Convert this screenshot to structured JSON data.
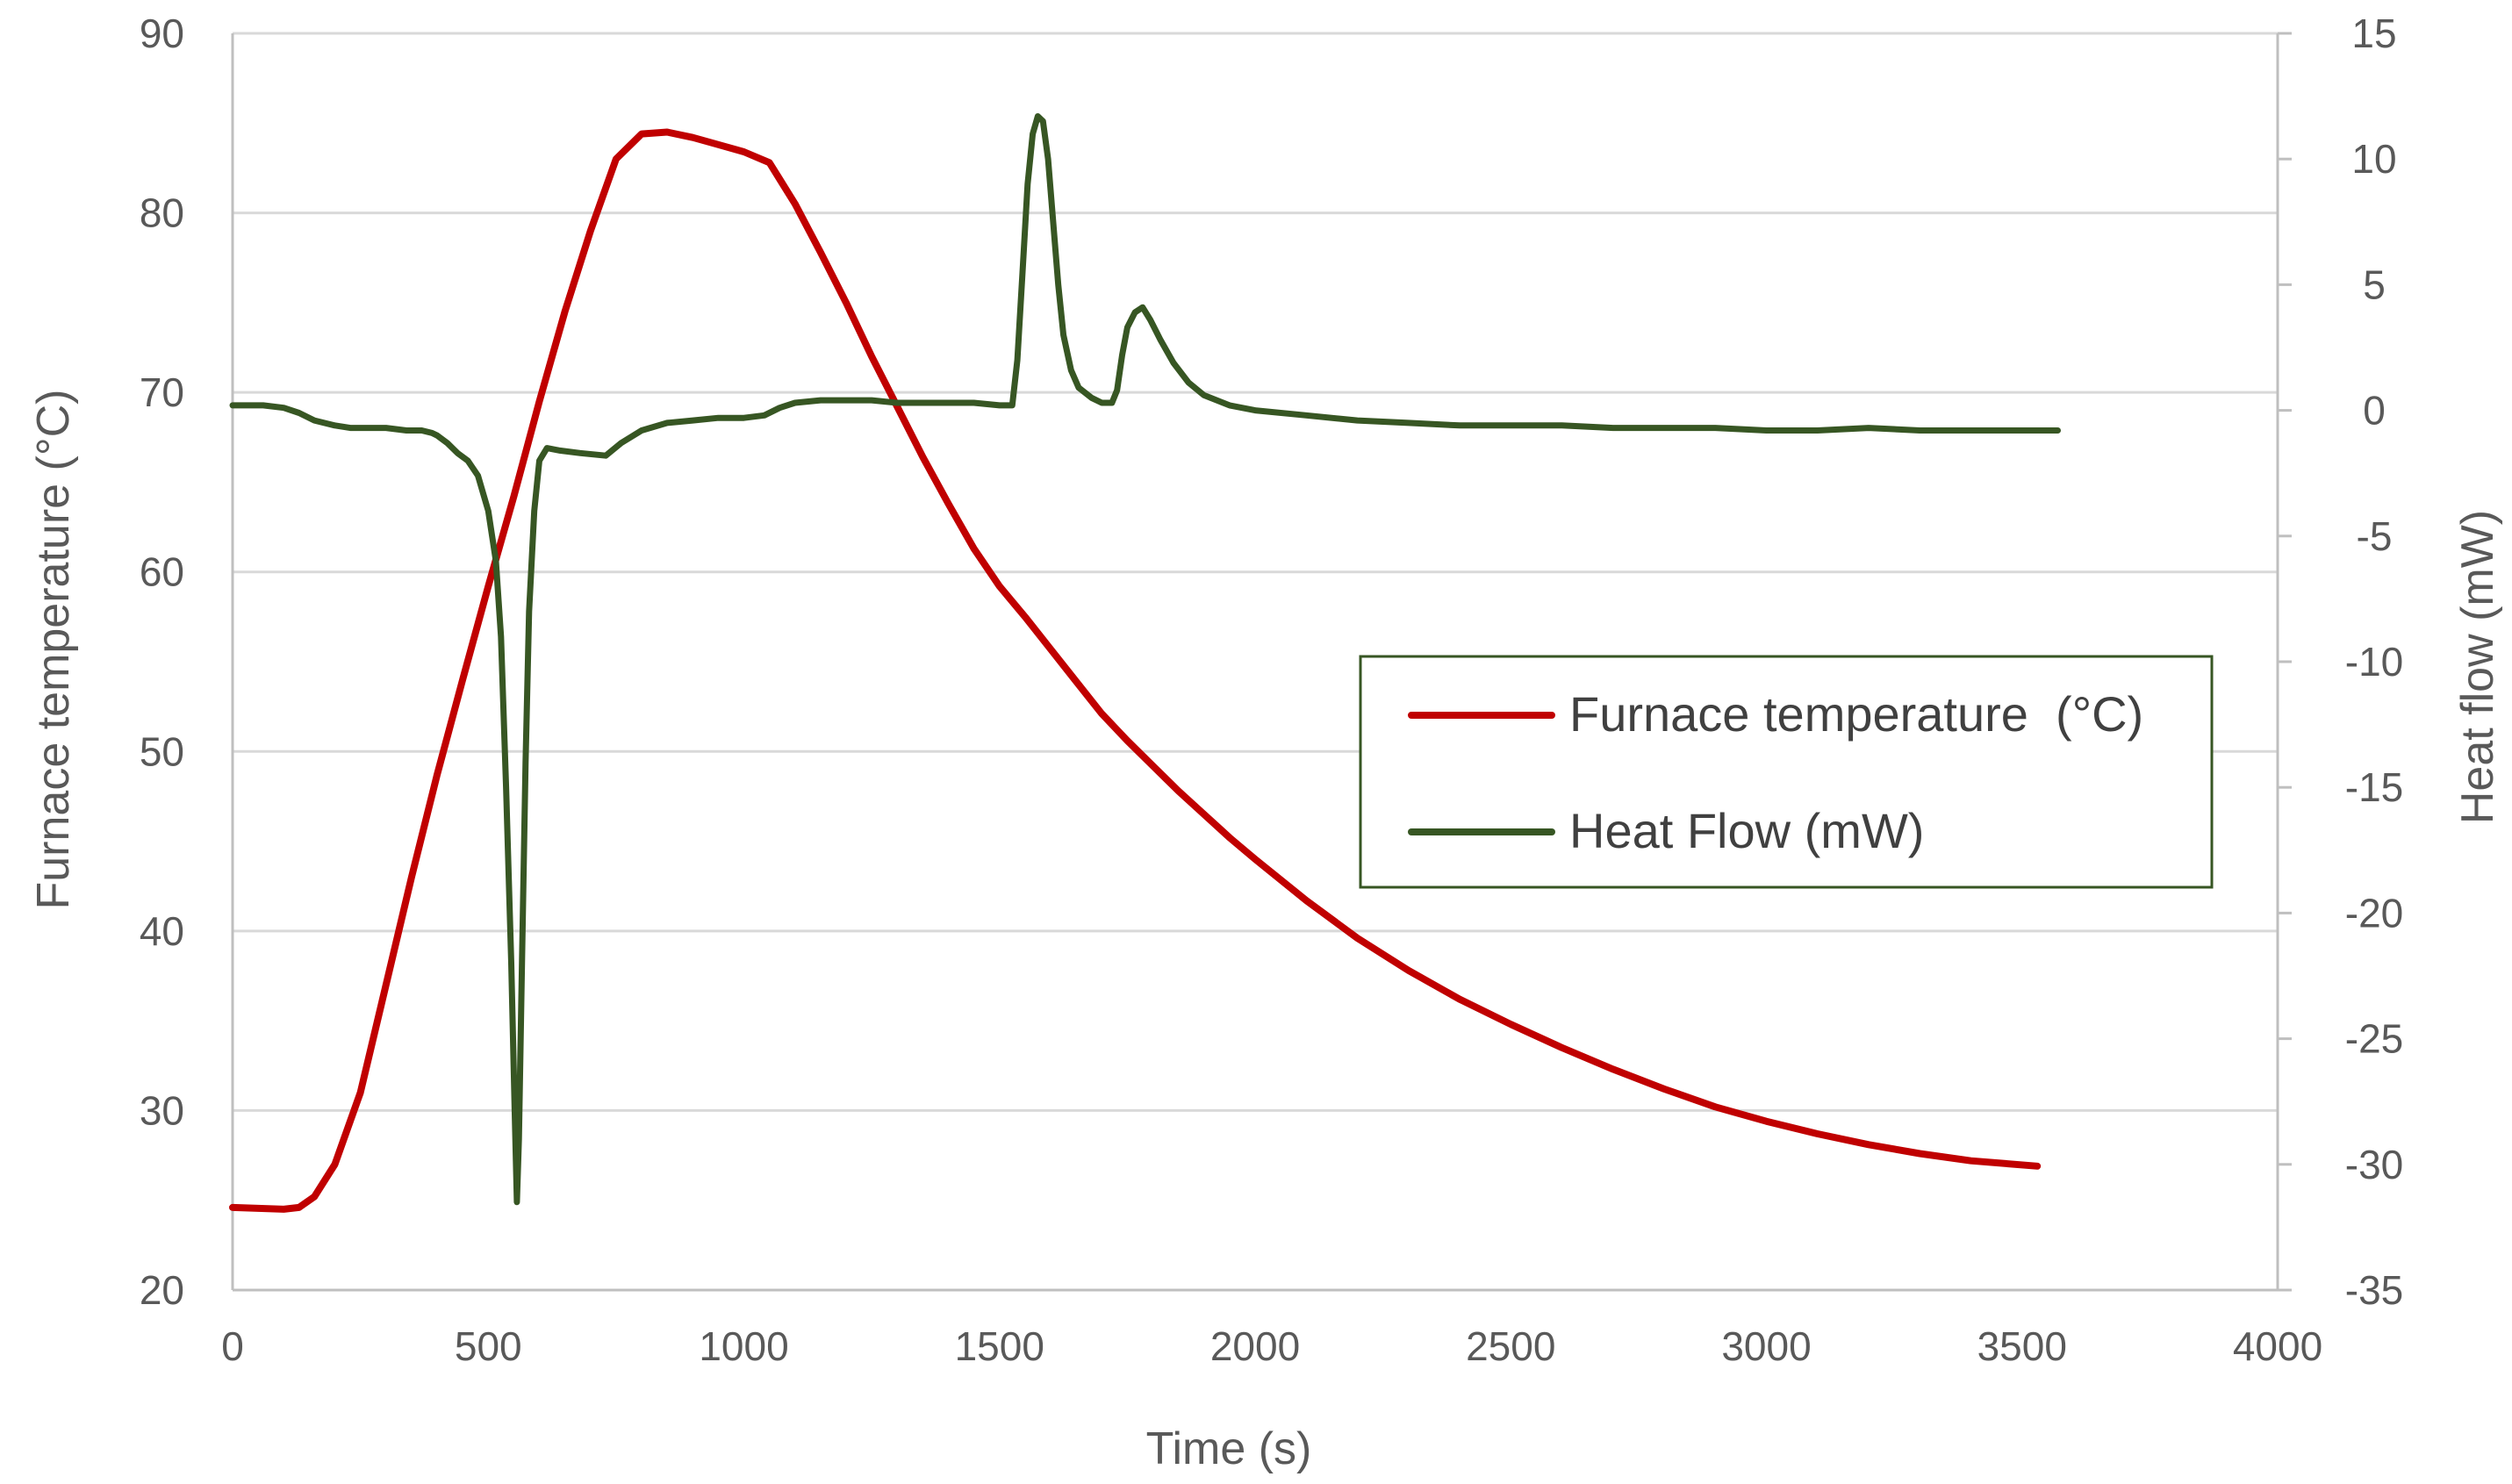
{
  "chart_data": {
    "type": "line",
    "title": "",
    "xlabel": "Time (s)",
    "ylabel": "Furnace temperature (°C)",
    "y2label": "Heat flow (mW)",
    "xlim": [
      0,
      4000
    ],
    "ylim": [
      20,
      90
    ],
    "y2lim": [
      -35,
      15
    ],
    "xticks": [
      0,
      500,
      1000,
      1500,
      2000,
      2500,
      3000,
      3500,
      4000
    ],
    "yticks": [
      20,
      30,
      40,
      50,
      60,
      70,
      80,
      90
    ],
    "y2ticks": [
      -35,
      -30,
      -25,
      -20,
      -15,
      -10,
      -5,
      0,
      5,
      10,
      15
    ],
    "grid": true,
    "legend_position": "center-right",
    "series": [
      {
        "name": "Furnace temperature  (°C)",
        "axis": "left",
        "color": "#c00000",
        "points": [
          [
            0,
            24.6
          ],
          [
            100,
            24.5
          ],
          [
            130,
            24.6
          ],
          [
            160,
            25.2
          ],
          [
            200,
            27.0
          ],
          [
            250,
            31.0
          ],
          [
            300,
            37.0
          ],
          [
            350,
            43.0
          ],
          [
            400,
            48.7
          ],
          [
            450,
            54.0
          ],
          [
            500,
            59.2
          ],
          [
            550,
            64.2
          ],
          [
            600,
            69.5
          ],
          [
            650,
            74.5
          ],
          [
            700,
            79.0
          ],
          [
            750,
            83.0
          ],
          [
            800,
            84.4
          ],
          [
            850,
            84.5
          ],
          [
            900,
            84.2
          ],
          [
            950,
            83.8
          ],
          [
            1000,
            83.4
          ],
          [
            1050,
            82.8
          ],
          [
            1100,
            80.5
          ],
          [
            1150,
            77.8
          ],
          [
            1200,
            75.0
          ],
          [
            1250,
            72.0
          ],
          [
            1300,
            69.2
          ],
          [
            1350,
            66.4
          ],
          [
            1400,
            63.8
          ],
          [
            1450,
            61.3
          ],
          [
            1500,
            59.2
          ],
          [
            1550,
            57.5
          ],
          [
            1600,
            55.7
          ],
          [
            1650,
            53.9
          ],
          [
            1700,
            52.1
          ],
          [
            1750,
            50.6
          ],
          [
            1800,
            49.2
          ],
          [
            1850,
            47.8
          ],
          [
            1900,
            46.5
          ],
          [
            1950,
            45.2
          ],
          [
            2000,
            44.0
          ],
          [
            2100,
            41.7
          ],
          [
            2200,
            39.6
          ],
          [
            2300,
            37.8
          ],
          [
            2400,
            36.2
          ],
          [
            2500,
            34.8
          ],
          [
            2600,
            33.5
          ],
          [
            2700,
            32.3
          ],
          [
            2800,
            31.2
          ],
          [
            2900,
            30.2
          ],
          [
            3000,
            29.4
          ],
          [
            3100,
            28.7
          ],
          [
            3200,
            28.1
          ],
          [
            3300,
            27.6
          ],
          [
            3400,
            27.2
          ],
          [
            3530,
            26.9
          ]
        ]
      },
      {
        "name": "Heat Flow (mW)",
        "axis": "right",
        "color": "#375623",
        "points": [
          [
            0,
            0.2
          ],
          [
            60,
            0.2
          ],
          [
            100,
            0.1
          ],
          [
            130,
            -0.1
          ],
          [
            160,
            -0.4
          ],
          [
            200,
            -0.6
          ],
          [
            230,
            -0.7
          ],
          [
            300,
            -0.7
          ],
          [
            340,
            -0.8
          ],
          [
            370,
            -0.8
          ],
          [
            390,
            -0.9
          ],
          [
            400,
            -1.0
          ],
          [
            420,
            -1.3
          ],
          [
            440,
            -1.7
          ],
          [
            460,
            -2.0
          ],
          [
            480,
            -2.6
          ],
          [
            500,
            -4.0
          ],
          [
            515,
            -6.0
          ],
          [
            525,
            -9.0
          ],
          [
            535,
            -15.0
          ],
          [
            545,
            -22.0
          ],
          [
            552,
            -28.0
          ],
          [
            556,
            -31.5
          ],
          [
            560,
            -29.0
          ],
          [
            566,
            -22.0
          ],
          [
            573,
            -14.0
          ],
          [
            580,
            -8.0
          ],
          [
            590,
            -4.0
          ],
          [
            600,
            -2.0
          ],
          [
            615,
            -1.5
          ],
          [
            640,
            -1.6
          ],
          [
            680,
            -1.7
          ],
          [
            730,
            -1.8
          ],
          [
            760,
            -1.3
          ],
          [
            800,
            -0.8
          ],
          [
            850,
            -0.5
          ],
          [
            900,
            -0.4
          ],
          [
            950,
            -0.3
          ],
          [
            1000,
            -0.3
          ],
          [
            1040,
            -0.2
          ],
          [
            1070,
            0.1
          ],
          [
            1100,
            0.3
          ],
          [
            1150,
            0.4
          ],
          [
            1200,
            0.4
          ],
          [
            1250,
            0.4
          ],
          [
            1300,
            0.3
          ],
          [
            1350,
            0.3
          ],
          [
            1400,
            0.3
          ],
          [
            1450,
            0.3
          ],
          [
            1500,
            0.2
          ],
          [
            1525,
            0.2
          ],
          [
            1535,
            2.0
          ],
          [
            1545,
            5.5
          ],
          [
            1555,
            9.0
          ],
          [
            1565,
            11.0
          ],
          [
            1575,
            11.7
          ],
          [
            1585,
            11.5
          ],
          [
            1595,
            10.0
          ],
          [
            1605,
            7.5
          ],
          [
            1615,
            5.0
          ],
          [
            1625,
            3.0
          ],
          [
            1640,
            1.6
          ],
          [
            1655,
            0.9
          ],
          [
            1680,
            0.5
          ],
          [
            1700,
            0.3
          ],
          [
            1720,
            0.3
          ],
          [
            1730,
            0.8
          ],
          [
            1740,
            2.2
          ],
          [
            1750,
            3.3
          ],
          [
            1765,
            3.9
          ],
          [
            1780,
            4.1
          ],
          [
            1795,
            3.6
          ],
          [
            1815,
            2.8
          ],
          [
            1840,
            1.9
          ],
          [
            1870,
            1.1
          ],
          [
            1900,
            0.6
          ],
          [
            1950,
            0.2
          ],
          [
            2000,
            0.0
          ],
          [
            2100,
            -0.2
          ],
          [
            2200,
            -0.4
          ],
          [
            2300,
            -0.5
          ],
          [
            2400,
            -0.6
          ],
          [
            2500,
            -0.6
          ],
          [
            2600,
            -0.6
          ],
          [
            2700,
            -0.7
          ],
          [
            2800,
            -0.7
          ],
          [
            2900,
            -0.7
          ],
          [
            3000,
            -0.8
          ],
          [
            3100,
            -0.8
          ],
          [
            3200,
            -0.7
          ],
          [
            3300,
            -0.8
          ],
          [
            3400,
            -0.8
          ],
          [
            3500,
            -0.8
          ],
          [
            3570,
            -0.8
          ]
        ]
      }
    ]
  }
}
